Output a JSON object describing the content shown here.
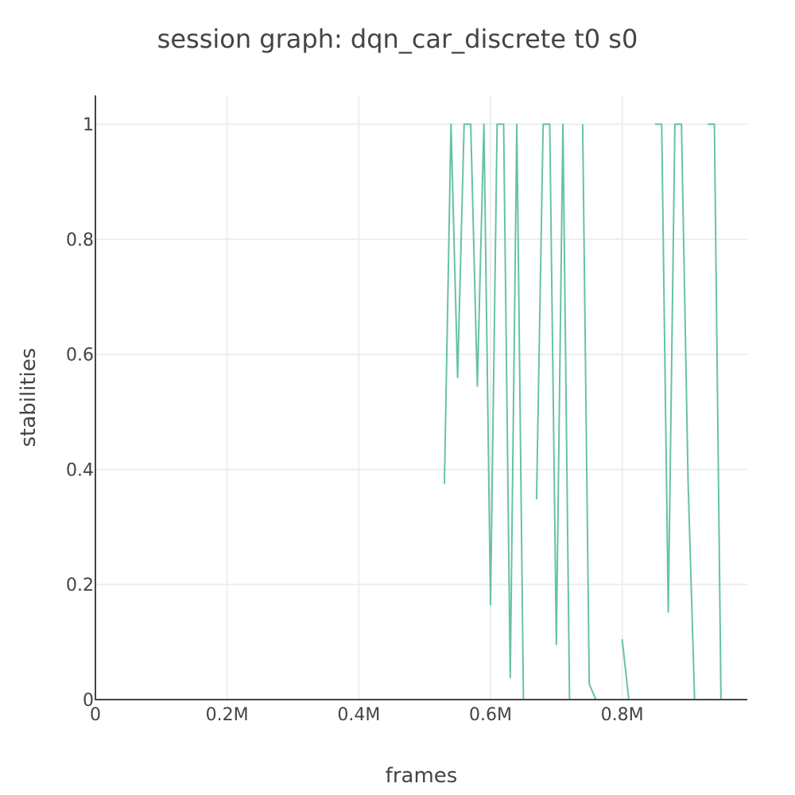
{
  "chart_data": {
    "type": "line",
    "title": "session graph: dqn_car_discrete t0 s0",
    "xlabel": "frames",
    "ylabel": "stabilities",
    "xlim": [
      0,
      990000
    ],
    "ylim": [
      0,
      1.05
    ],
    "grid": true,
    "legend": "none",
    "line_color": "#66c2a5",
    "x_ticks": [
      {
        "value": 0,
        "label": "0"
      },
      {
        "value": 200000,
        "label": "0.2M"
      },
      {
        "value": 400000,
        "label": "0.4M"
      },
      {
        "value": 600000,
        "label": "0.6M"
      },
      {
        "value": 800000,
        "label": "0.8M"
      }
    ],
    "y_ticks": [
      {
        "value": 0,
        "label": "0"
      },
      {
        "value": 0.2,
        "label": "0.2"
      },
      {
        "value": 0.4,
        "label": "0.4"
      },
      {
        "value": 0.6,
        "label": "0.6"
      },
      {
        "value": 0.8,
        "label": "0.8"
      },
      {
        "value": 1,
        "label": "1"
      }
    ],
    "segments": [
      [
        [
          530000,
          0.375
        ],
        [
          540000,
          1.0
        ],
        [
          550000,
          0.56
        ],
        [
          560000,
          1.0
        ],
        [
          570000,
          1.0
        ],
        [
          580000,
          0.545
        ],
        [
          590000,
          1.0
        ],
        [
          600000,
          0.165
        ],
        [
          610000,
          1.0
        ],
        [
          620000,
          1.0
        ],
        [
          630000,
          0.038
        ],
        [
          640000,
          1.0
        ],
        [
          650000,
          0.0
        ]
      ],
      [
        [
          670000,
          0.348
        ],
        [
          680000,
          1.0
        ],
        [
          690000,
          1.0
        ],
        [
          700000,
          0.096
        ],
        [
          710000,
          1.0
        ],
        [
          720000,
          0.0
        ]
      ],
      [
        [
          740000,
          1.0
        ],
        [
          750000,
          0.027
        ],
        [
          760000,
          0.0
        ]
      ],
      [
        [
          800000,
          0.105
        ],
        [
          810000,
          0.0
        ]
      ],
      [
        [
          850000,
          1.0
        ],
        [
          860000,
          1.0
        ],
        [
          870000,
          0.152
        ],
        [
          880000,
          1.0
        ],
        [
          890000,
          1.0
        ],
        [
          900000,
          0.38
        ],
        [
          910000,
          0.0
        ]
      ],
      [
        [
          930000,
          1.0
        ],
        [
          940000,
          1.0
        ],
        [
          950000,
          0.0
        ]
      ]
    ]
  }
}
